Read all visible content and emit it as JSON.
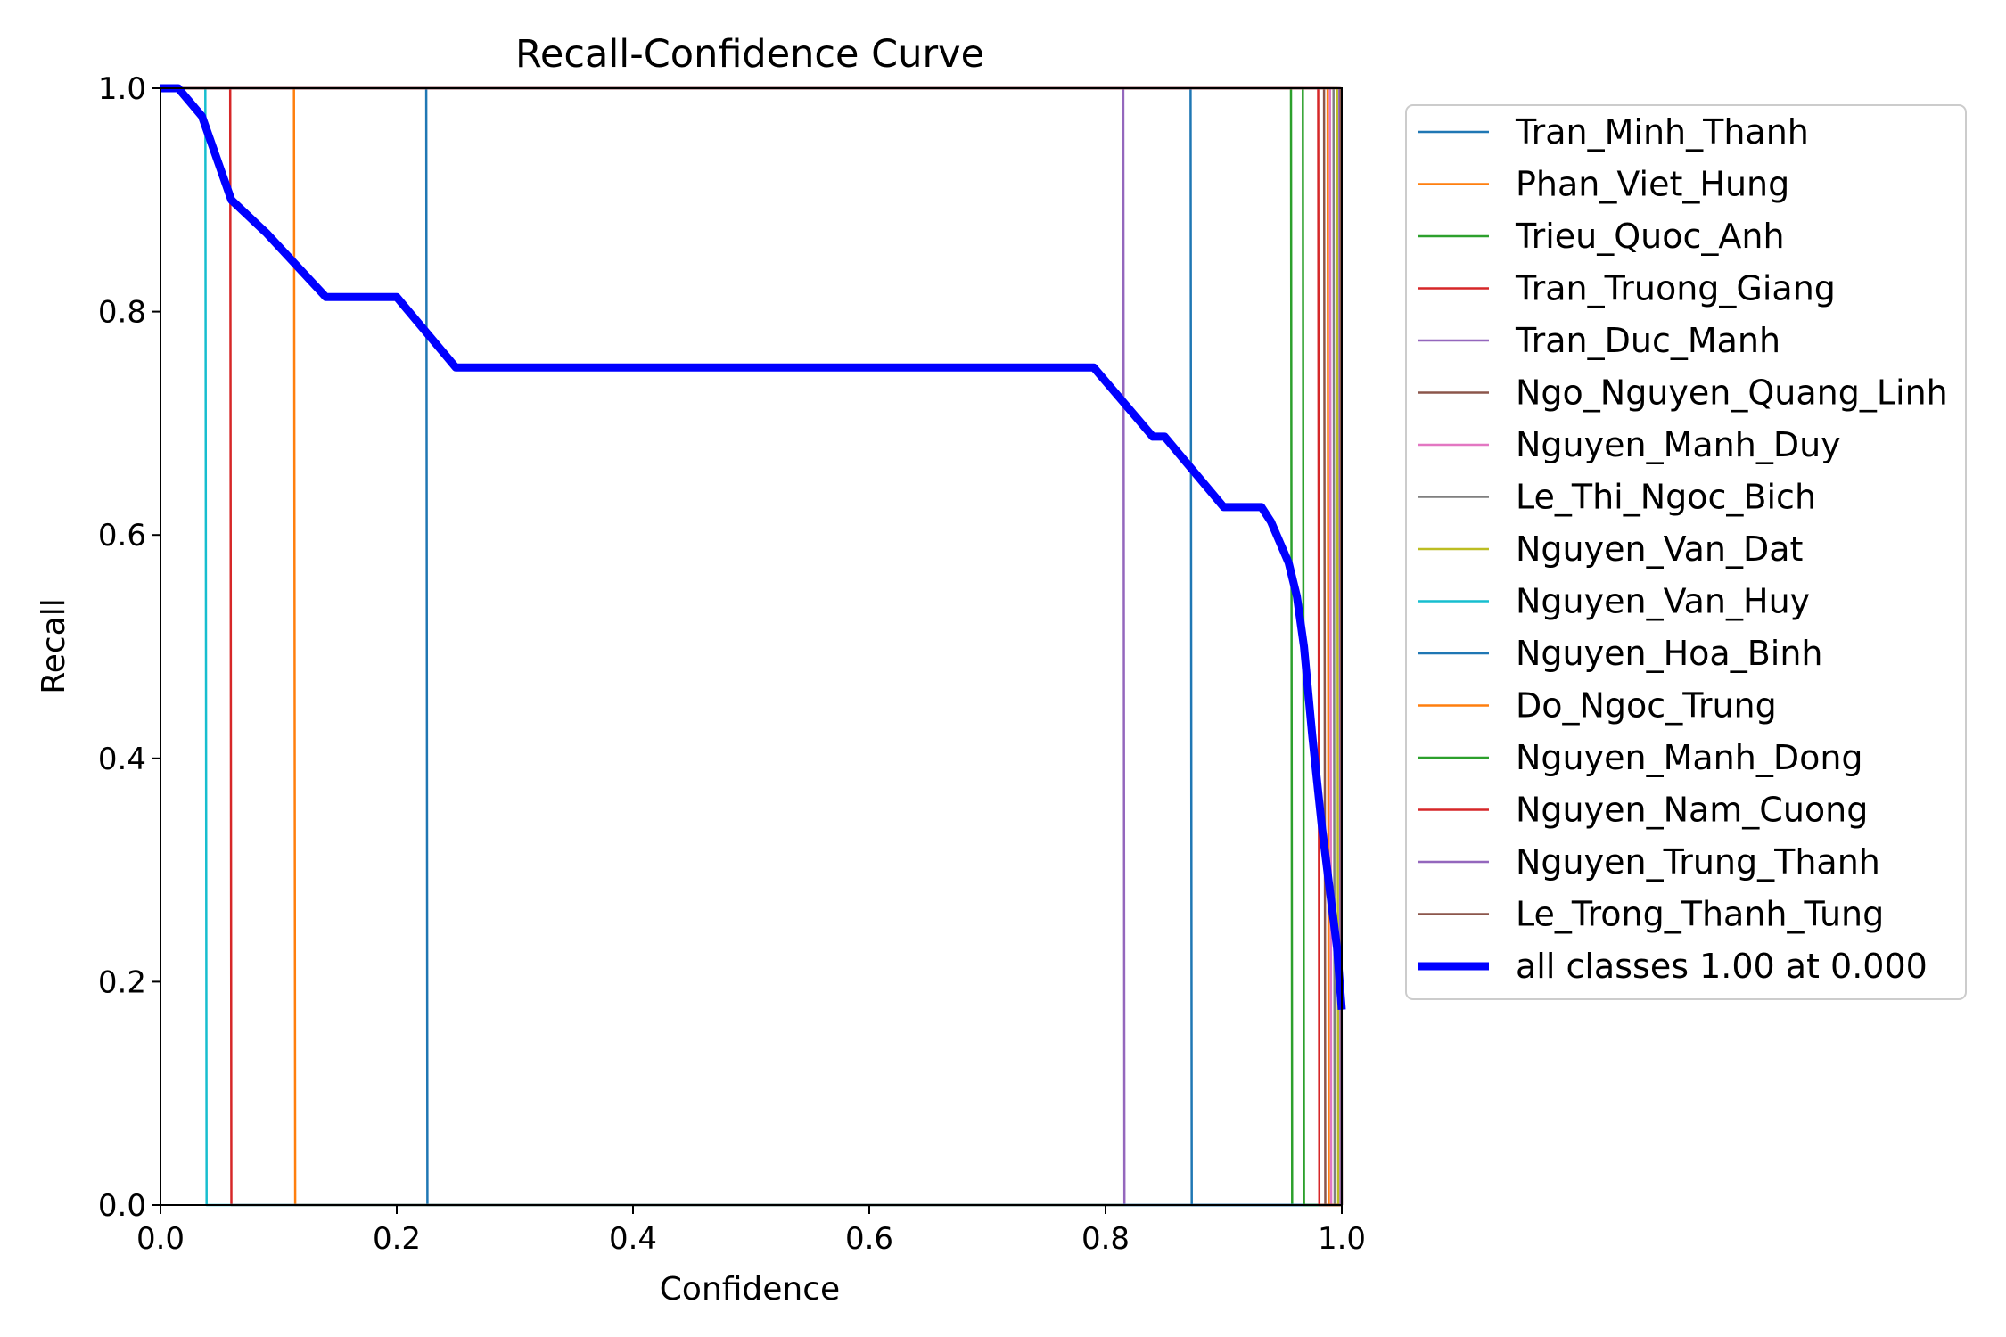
{
  "chart_data": {
    "type": "line",
    "title": "Recall-Confidence Curve",
    "xlabel": "Confidence",
    "ylabel": "Recall",
    "xlim": [
      0,
      1
    ],
    "ylim": [
      0,
      1
    ],
    "xticks": [
      "0.0",
      "0.2",
      "0.4",
      "0.6",
      "0.8",
      "1.0"
    ],
    "yticks": [
      "0.0",
      "0.2",
      "0.4",
      "0.6",
      "0.8",
      "1.0"
    ],
    "grid": false,
    "legend_position": "outside-right",
    "series": [
      {
        "name": "Tran_Minh_Thanh",
        "color": "#1f77b4",
        "x": [
          0,
          0.225,
          0.226,
          1
        ],
        "y": [
          1,
          1,
          0,
          0
        ]
      },
      {
        "name": "Phan_Viet_Hung",
        "color": "#ff7f0e",
        "x": [
          0,
          0.113,
          0.114,
          1
        ],
        "y": [
          1,
          1,
          0,
          0
        ]
      },
      {
        "name": "Trieu_Quoc_Anh",
        "color": "#2ca02c",
        "x": [
          0,
          0.957,
          0.958,
          1
        ],
        "y": [
          1,
          1,
          0,
          0
        ]
      },
      {
        "name": "Tran_Truong_Giang",
        "color": "#d62728",
        "x": [
          0,
          0.059,
          0.06,
          1
        ],
        "y": [
          1,
          1,
          0,
          0
        ]
      },
      {
        "name": "Tran_Duc_Manh",
        "color": "#9467bd",
        "x": [
          0,
          0.815,
          0.816,
          1
        ],
        "y": [
          1,
          1,
          0,
          0
        ]
      },
      {
        "name": "Ngo_Nguyen_Quang_Linh",
        "color": "#8c564b",
        "x": [
          0,
          0.985,
          0.986,
          1
        ],
        "y": [
          1,
          1,
          0,
          0
        ]
      },
      {
        "name": "Nguyen_Manh_Duy",
        "color": "#e377c2",
        "x": [
          0,
          0.99,
          0.991,
          1
        ],
        "y": [
          1,
          1,
          0,
          0
        ]
      },
      {
        "name": "Le_Thi_Ngoc_Bich",
        "color": "#7f7f7f",
        "x": [
          0,
          0.993,
          0.994,
          1
        ],
        "y": [
          1,
          1,
          0,
          0
        ]
      },
      {
        "name": "Nguyen_Van_Dat",
        "color": "#bcbd22",
        "x": [
          0,
          0.996,
          0.997,
          1
        ],
        "y": [
          1,
          1,
          0,
          0
        ]
      },
      {
        "name": "Nguyen_Van_Huy",
        "color": "#17becf",
        "x": [
          0,
          0.038,
          0.039,
          1
        ],
        "y": [
          1,
          1,
          0,
          0
        ]
      },
      {
        "name": "Nguyen_Hoa_Binh",
        "color": "#1f77b4",
        "x": [
          0,
          0.872,
          0.873,
          1
        ],
        "y": [
          1,
          1,
          0,
          0
        ]
      },
      {
        "name": "Do_Ngoc_Trung",
        "color": "#ff7f0e",
        "x": [
          0,
          0.988,
          0.989,
          1
        ],
        "y": [
          1,
          1,
          0,
          0
        ]
      },
      {
        "name": "Nguyen_Manh_Dong",
        "color": "#2ca02c",
        "x": [
          0,
          0.967,
          0.968,
          1
        ],
        "y": [
          1,
          1,
          0,
          0
        ]
      },
      {
        "name": "Nguyen_Nam_Cuong",
        "color": "#d62728",
        "x": [
          0,
          0.98,
          0.981,
          1
        ],
        "y": [
          1,
          1,
          0,
          0
        ]
      },
      {
        "name": "Nguyen_Trung_Thanh",
        "color": "#9467bd",
        "x": [
          0,
          0.998,
          0.999,
          1
        ],
        "y": [
          1,
          1,
          0,
          0
        ]
      },
      {
        "name": "Le_Trong_Thanh_Tung",
        "color": "#8c564b",
        "x": [
          0,
          0.999,
          1,
          1
        ],
        "y": [
          1,
          1,
          0,
          0
        ]
      },
      {
        "name": "all classes 1.00 at 0.000",
        "color": "#0000ff",
        "bold": true,
        "x": [
          0,
          0.015,
          0.035,
          0.06,
          0.075,
          0.085,
          0.09,
          0.14,
          0.2,
          0.25,
          0.79,
          0.84,
          0.85,
          0.9,
          0.932,
          0.94,
          0.955,
          0.962,
          0.968,
          0.975,
          0.983,
          0.99,
          0.996,
          1.0
        ],
        "y": [
          1.0,
          1.0,
          0.975,
          0.9,
          0.885,
          0.875,
          0.87,
          0.813,
          0.813,
          0.75,
          0.75,
          0.688,
          0.688,
          0.625,
          0.625,
          0.612,
          0.575,
          0.545,
          0.5,
          0.42,
          0.34,
          0.28,
          0.23,
          0.175
        ]
      }
    ]
  }
}
